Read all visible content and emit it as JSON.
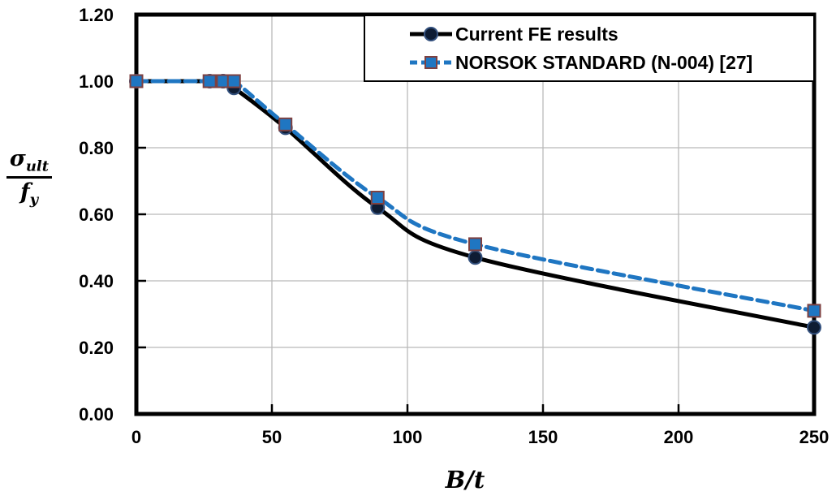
{
  "chart_data": {
    "type": "line",
    "title": "",
    "xlabel": "B/t",
    "ylabel": "σ_ult / f_y",
    "ylabel_parts": {
      "numerator_base": "σ",
      "numerator_sub": "ult",
      "denominator_base": "f",
      "denominator_sub": "y"
    },
    "xlim": [
      0,
      250
    ],
    "ylim": [
      0,
      1.2
    ],
    "x_ticks": [
      0,
      50,
      100,
      150,
      200,
      250
    ],
    "y_ticks": [
      {
        "value": 1.2,
        "label": "1.20"
      },
      {
        "value": 1.0,
        "label": "1.00"
      },
      {
        "value": 0.8,
        "label": "0.80"
      },
      {
        "value": 0.6,
        "label": "0.60"
      },
      {
        "value": 0.4,
        "label": "0.40"
      },
      {
        "value": 0.2,
        "label": "0.20"
      },
      {
        "value": 0.0,
        "label": "0.00"
      }
    ],
    "grid": true,
    "grid_color": "#b9b9b9",
    "legend_position": "top-right-inside",
    "series": [
      {
        "name": "Current FE results",
        "color": "#000000",
        "line_style": "solid",
        "marker": "circle",
        "marker_fill": "#0e1c33",
        "marker_border": "#33507d",
        "points": [
          [
            0,
            1.0
          ],
          [
            27,
            1.0
          ],
          [
            32,
            1.0
          ],
          [
            36,
            0.98
          ],
          [
            55,
            0.86
          ],
          [
            89,
            0.62
          ],
          [
            125,
            0.47
          ],
          [
            250,
            0.26
          ]
        ]
      },
      {
        "name": "NORSOK STANDARD (N-004) [27]",
        "color": "#1f76c2",
        "line_style": "dashed",
        "marker": "square",
        "marker_fill": "#1f76c2",
        "marker_border": "#7e4141",
        "points": [
          [
            0,
            1.0
          ],
          [
            27,
            1.0
          ],
          [
            32,
            1.0
          ],
          [
            36,
            1.0
          ],
          [
            55,
            0.87
          ],
          [
            89,
            0.65
          ],
          [
            125,
            0.51
          ],
          [
            250,
            0.31
          ]
        ]
      }
    ]
  }
}
